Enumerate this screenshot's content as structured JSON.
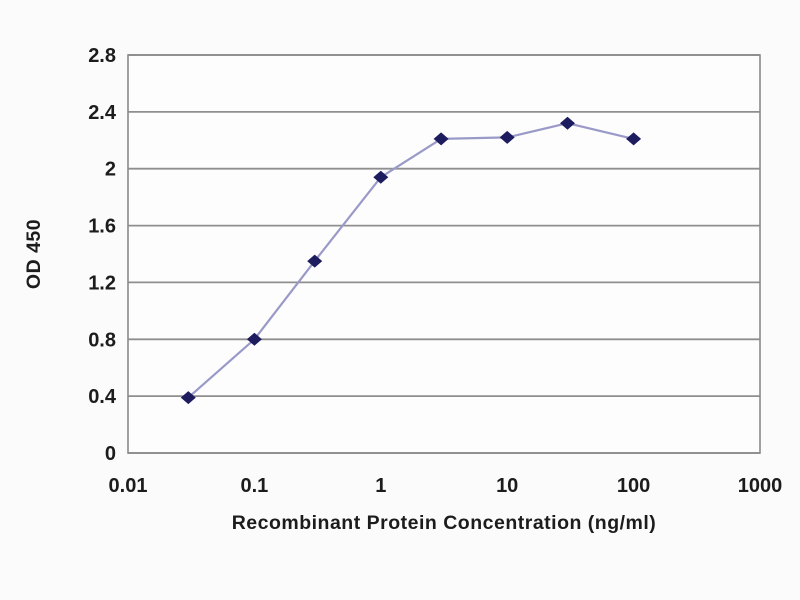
{
  "chart_data": {
    "type": "line",
    "x": [
      0.03,
      0.1,
      0.3,
      1,
      3,
      10,
      30,
      100
    ],
    "y": [
      0.39,
      0.8,
      1.35,
      1.94,
      2.21,
      2.22,
      2.32,
      2.21
    ],
    "xlabel": "Recombinant Protein Concentration (ng/ml)",
    "ylabel": "OD 450",
    "title": "",
    "x_scale": "log",
    "xlim": [
      0.01,
      1000
    ],
    "ylim": [
      0,
      2.8
    ],
    "x_ticks": [
      0.01,
      0.1,
      1,
      10,
      100,
      1000
    ],
    "x_tick_labels": [
      "0.01",
      "0.1",
      "1",
      "10",
      "100",
      "1000"
    ],
    "y_ticks": [
      0,
      0.4,
      0.8,
      1.2,
      1.6,
      2,
      2.4,
      2.8
    ],
    "y_tick_labels": [
      "0",
      "0.4",
      "0.8",
      "1.2",
      "1.6",
      "2",
      "2.4",
      "2.8"
    ],
    "grid": "horizontal",
    "legend": "none",
    "marker": "diamond",
    "colors": {
      "marker": "#1c1c5e",
      "line": "#9a9ac8",
      "grid": "#8f8f8f",
      "frame": "#8a8a8a",
      "plot_background": "#fdfdfd",
      "page_background": "#fbfbfb",
      "text": "#1c1c1c"
    }
  }
}
